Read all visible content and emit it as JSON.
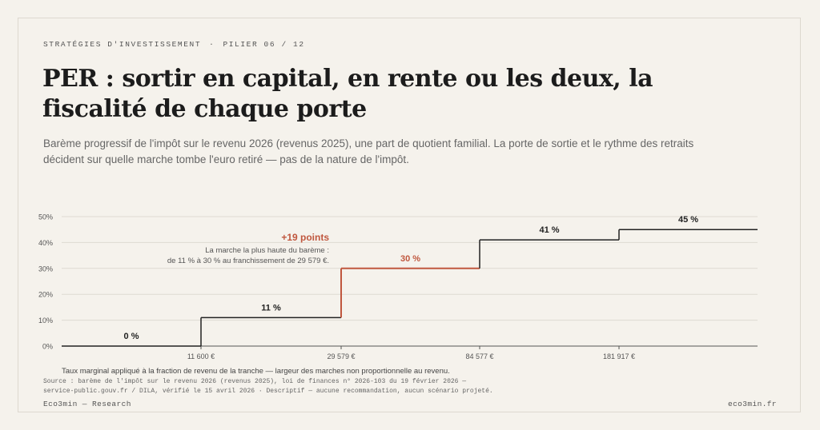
{
  "header": {
    "kicker_section": "STRATÉGIES D'INVESTISSEMENT",
    "kicker_separator": "·",
    "kicker_pillar": "PILIER 06 / 12",
    "title": "PER : sortir en capital, en rente ou les deux, la fiscalité de chaque porte",
    "subtitle": "Barème progressif de l'impôt sur le revenu 2026 (revenus 2025), une part de quotient familial. La porte de sortie et le rythme des retraits décident sur quelle marche tombe l'euro retiré — pas de la nature de l'impôt."
  },
  "chart_data": {
    "type": "line",
    "subtype": "step",
    "y_ticks": [
      "0%",
      "10%",
      "20%",
      "30%",
      "40%",
      "50%"
    ],
    "ylim": [
      0,
      50
    ],
    "x_ticks": [
      "11 600 €",
      "29 579 €",
      "84 577 €",
      "181 917 €"
    ],
    "x_scale": "non-proportional",
    "grid": true,
    "brackets": [
      {
        "label": "0 %",
        "rate": 0,
        "from": 0,
        "to": 11600
      },
      {
        "label": "11 %",
        "rate": 11,
        "from": 11600,
        "to": 29579
      },
      {
        "label": "30 %",
        "rate": 30,
        "from": 29579,
        "to": 84577
      },
      {
        "label": "41 %",
        "rate": 41,
        "from": 84577,
        "to": 181917
      },
      {
        "label": "45 %",
        "rate": 45,
        "from": 181917,
        "to": null
      }
    ],
    "highlight_bracket": 2,
    "annotation": {
      "title": "+19 points",
      "line1": "La marche la plus haute du barème :",
      "line2": "de 11 % à 30 % au franchissement de 29 579 €."
    },
    "colors": {
      "line": "#222222",
      "highlight": "#c0573e",
      "grid": "#dedad2"
    }
  },
  "caption": "Taux marginal appliqué à la fraction de revenu de la tranche — largeur des marches non proportionnelle au revenu.",
  "source_line1": "Source : barème de l'impôt sur le revenu 2026 (revenus 2025), loi de finances n° 2026-103 du 19 février 2026 —",
  "source_line2": "service-public.gouv.fr / DILA, vérifié le 15 avril 2026 · Descriptif — aucune recommandation, aucun scénario projeté.",
  "footer": {
    "left": "Eco3min — Research",
    "right": "eco3min.fr"
  }
}
